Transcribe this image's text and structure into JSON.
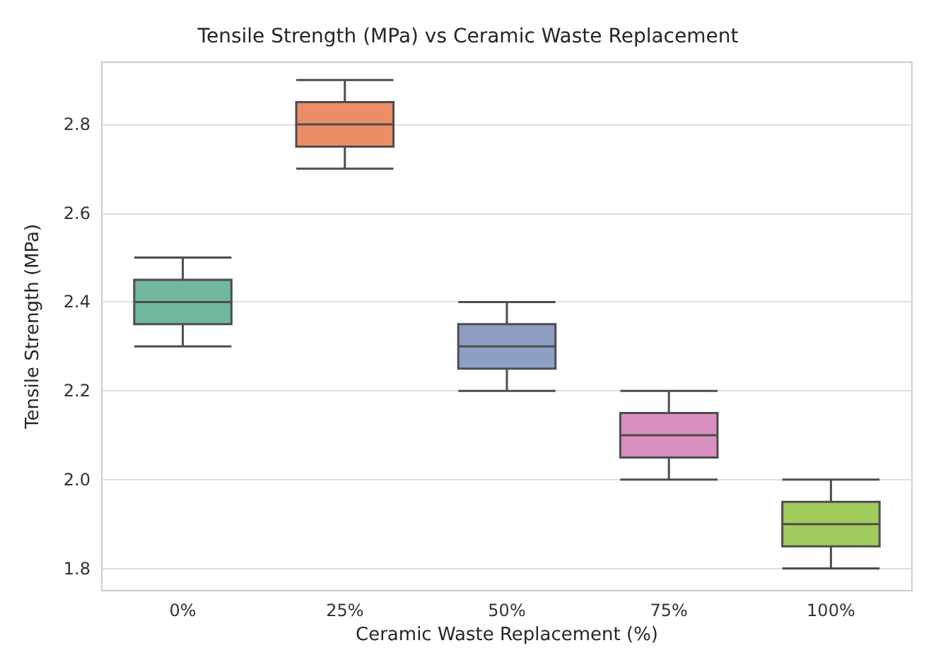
{
  "chart_data": {
    "type": "box",
    "title": "Tensile Strength (MPa) vs Ceramic Waste Replacement",
    "xlabel": "Ceramic Waste Replacement (%)",
    "ylabel": "Tensile Strength (MPa)",
    "categories": [
      "0%",
      "25%",
      "50%",
      "75%",
      "100%"
    ],
    "boxes": [
      {
        "low": 2.3,
        "q1": 2.35,
        "median": 2.4,
        "q3": 2.45,
        "high": 2.5
      },
      {
        "low": 2.7,
        "q1": 2.75,
        "median": 2.8,
        "q3": 2.85,
        "high": 2.9
      },
      {
        "low": 2.2,
        "q1": 2.25,
        "median": 2.3,
        "q3": 2.35,
        "high": 2.4
      },
      {
        "low": 2.0,
        "q1": 2.05,
        "median": 2.1,
        "q3": 2.15,
        "high": 2.2
      },
      {
        "low": 1.8,
        "q1": 1.85,
        "median": 1.9,
        "q3": 1.95,
        "high": 2.0
      }
    ],
    "colors": [
      "#70b89c",
      "#eb8e66",
      "#8f9ec4",
      "#d98fbf",
      "#a1cc5d"
    ],
    "ylim": [
      1.75,
      2.94
    ],
    "yticks": [
      1.8,
      {
        "value": 2,
        "label": "2.0"
      },
      2.2,
      2.4,
      2.6,
      2.8
    ],
    "grid": "y"
  }
}
